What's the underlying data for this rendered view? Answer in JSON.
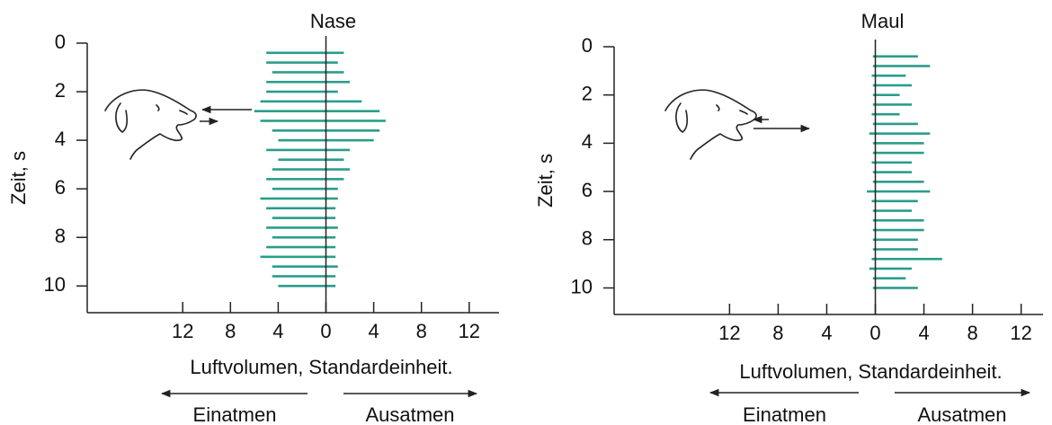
{
  "chart_data": [
    {
      "type": "bar",
      "title": "Nase",
      "xlabel": "Luftvolumen, Standardeinheit.",
      "ylabel": "Zeit, s",
      "xlim": [
        -20,
        14.5
      ],
      "xticks": [
        {
          "value": -12,
          "label": "12"
        },
        {
          "value": -8,
          "label": "8"
        },
        {
          "value": -4,
          "label": "4"
        },
        0,
        4,
        8,
        12
      ],
      "ylim": [
        0,
        11.1
      ],
      "yticks": [
        0,
        2,
        4,
        6,
        8,
        10
      ],
      "y": [
        0.4,
        0.8,
        1.2,
        1.6,
        2.0,
        2.4,
        2.8,
        3.2,
        3.6,
        4.0,
        4.4,
        4.8,
        5.2,
        5.6,
        6.0,
        6.4,
        6.8,
        7.2,
        7.6,
        8.0,
        8.4,
        8.8,
        9.2,
        9.6,
        10.0
      ],
      "series": [
        {
          "name": "Einatmen",
          "color": "#2a9d8a",
          "values": [
            -5,
            -5,
            -4.5,
            -5,
            -5,
            -5.5,
            -6,
            -5.5,
            -4.5,
            -4,
            -5,
            -4,
            -4.5,
            -5,
            -4.5,
            -5.5,
            -5,
            -4.5,
            -5,
            -4.5,
            -5,
            -5.5,
            -4.5,
            -4.5,
            -4
          ]
        },
        {
          "name": "Ausatmen",
          "color": "#2a9d8a",
          "values": [
            1.5,
            1,
            1.5,
            2,
            1,
            3,
            4.5,
            5,
            4.5,
            4,
            2,
            1.5,
            2,
            1.5,
            1,
            1,
            0.8,
            0.8,
            1,
            0.8,
            0.8,
            0.8,
            1,
            0.8,
            0.8
          ]
        }
      ]
    },
    {
      "type": "bar",
      "title": "Maul",
      "xlabel": "Luftvolumen, Standardeinheit.",
      "ylabel": "Zeit, s",
      "xlim": [
        -21.5,
        13.8
      ],
      "xticks": [
        {
          "value": -12,
          "label": "12"
        },
        {
          "value": -8,
          "label": "8"
        },
        {
          "value": -4,
          "label": "4"
        },
        0,
        4,
        8,
        12
      ],
      "ylim": [
        0,
        11.1
      ],
      "yticks": [
        0,
        2,
        4,
        6,
        8,
        10
      ],
      "y": [
        0.4,
        0.8,
        1.2,
        1.6,
        2.0,
        2.4,
        2.8,
        3.2,
        3.6,
        4.0,
        4.4,
        4.8,
        5.2,
        5.6,
        6.0,
        6.4,
        6.8,
        7.2,
        7.6,
        8.0,
        8.4,
        8.8,
        9.2,
        9.6,
        10.0
      ],
      "series": [
        {
          "name": "Einatmen",
          "color": "#2a9d8a",
          "values": [
            -0.2,
            -0.2,
            -0.3,
            -0.2,
            -0.2,
            -0.2,
            -0.3,
            -0.2,
            -0.5,
            -0.2,
            -0.2,
            -0.3,
            -0.2,
            -0.2,
            -0.7,
            -0.3,
            -0.2,
            -0.2,
            -0.2,
            -0.2,
            -0.2,
            -0.3,
            -0.5,
            -0.2,
            -0.2
          ]
        },
        {
          "name": "Ausatmen",
          "color": "#2a9d8a",
          "values": [
            3.5,
            4.5,
            2.5,
            3,
            2,
            3,
            2,
            3.5,
            4.5,
            4,
            4,
            3,
            3,
            4,
            4.5,
            3.5,
            3,
            4,
            4,
            3.5,
            3.5,
            5.5,
            3,
            2.5,
            3.5
          ]
        }
      ]
    }
  ]
}
